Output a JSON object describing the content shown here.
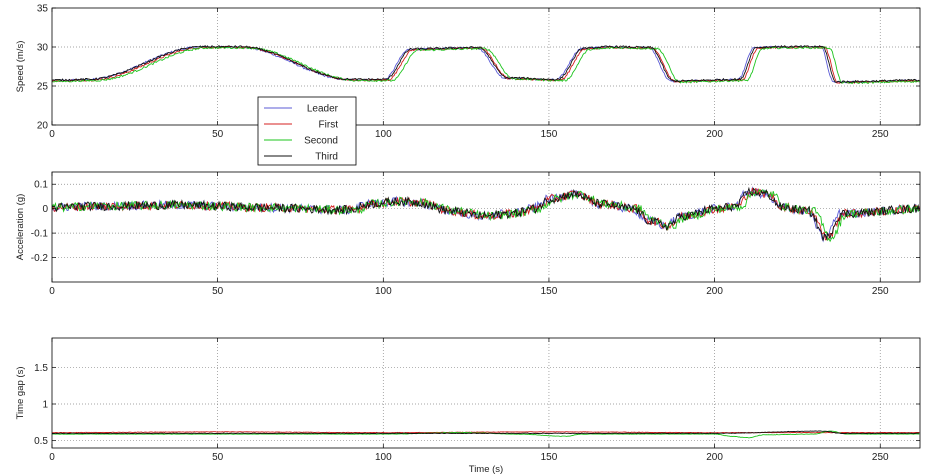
{
  "chart_data": [
    {
      "type": "line",
      "title": "",
      "xlabel": "",
      "ylabel": "Speed (m/s)",
      "xlim": [
        0,
        262
      ],
      "ylim": [
        20,
        35
      ],
      "xticks": [
        0,
        50,
        100,
        150,
        200,
        250
      ],
      "yticks": [
        20,
        25,
        30,
        35
      ],
      "grid": true,
      "noise": 0.12,
      "legend": {
        "position": "inside-lower-left",
        "entries": [
          "Leader",
          "First",
          "Second",
          "Third"
        ]
      },
      "series": [
        {
          "name": "Leader",
          "color": "#5b5bd6",
          "lag": 0,
          "offset": 0,
          "x": [
            0,
            10,
            45,
            56,
            90,
            100,
            108,
            128,
            137,
            152,
            160,
            168,
            180,
            187,
            207,
            212,
            218,
            232,
            236,
            262
          ],
          "y": [
            25.7,
            25.8,
            30,
            30,
            25.8,
            25.8,
            29.7,
            29.9,
            26,
            25.8,
            29.8,
            30,
            29.9,
            25.6,
            25.8,
            29.9,
            30,
            30,
            25.5,
            25.7
          ]
        },
        {
          "name": "First",
          "color": "#d42020",
          "lag": 1.2,
          "offset": -0.05,
          "x": [
            0,
            10,
            45,
            56,
            90,
            100,
            108,
            128,
            137,
            152,
            160,
            168,
            180,
            187,
            207,
            212,
            218,
            232,
            236,
            262
          ],
          "y": [
            25.7,
            25.8,
            30,
            30,
            25.8,
            25.8,
            29.7,
            29.9,
            26,
            25.8,
            29.8,
            30,
            29.9,
            25.6,
            25.8,
            29.9,
            30,
            30,
            25.5,
            25.7
          ]
        },
        {
          "name": "Second",
          "color": "#1ec41e",
          "lag": 2.6,
          "offset": -0.1,
          "x": [
            0,
            10,
            45,
            56,
            90,
            100,
            108,
            128,
            137,
            152,
            160,
            168,
            180,
            187,
            207,
            212,
            218,
            232,
            236,
            262
          ],
          "y": [
            25.7,
            25.8,
            30,
            30,
            25.8,
            25.8,
            29.7,
            29.9,
            26,
            25.8,
            29.8,
            30,
            29.9,
            25.6,
            25.8,
            29.9,
            30,
            30,
            25.5,
            25.7
          ]
        },
        {
          "name": "Third",
          "color": "#111111",
          "lag": 0.6,
          "offset": 0.05,
          "x": [
            0,
            10,
            45,
            56,
            90,
            100,
            108,
            128,
            137,
            152,
            160,
            168,
            180,
            187,
            207,
            212,
            218,
            232,
            236,
            262
          ],
          "y": [
            25.7,
            25.8,
            30,
            30,
            25.8,
            25.8,
            29.7,
            29.9,
            26,
            25.8,
            29.8,
            30,
            29.9,
            25.6,
            25.8,
            29.9,
            30,
            30,
            25.5,
            25.7
          ]
        }
      ]
    },
    {
      "type": "line",
      "title": "",
      "xlabel": "",
      "ylabel": "Acceleration (g)",
      "xlim": [
        0,
        262
      ],
      "ylim": [
        -0.3,
        0.15
      ],
      "xticks": [
        0,
        50,
        100,
        150,
        200,
        250
      ],
      "yticks": [
        -0.2,
        -0.1,
        0,
        0.1
      ],
      "grid": true,
      "noise": 0.018,
      "series": [
        {
          "name": "Leader",
          "color": "#5b5bd6",
          "lag": 0,
          "offset": 0,
          "x": [
            0,
            10,
            40,
            50,
            60,
            90,
            95,
            105,
            110,
            120,
            130,
            138,
            145,
            150,
            157,
            165,
            175,
            180,
            185,
            190,
            200,
            206,
            210,
            215,
            220,
            228,
            233,
            238,
            262
          ],
          "y": [
            0.005,
            0.01,
            0.015,
            0.01,
            0.005,
            -0.005,
            0.02,
            0.03,
            0.025,
            -0.01,
            -0.03,
            -0.02,
            0,
            0.04,
            0.06,
            0.02,
            0,
            -0.05,
            -0.07,
            -0.03,
            0,
            0.01,
            0.07,
            0.06,
            0.005,
            -0.01,
            -0.12,
            -0.02,
            0.0
          ]
        },
        {
          "name": "First",
          "color": "#d42020",
          "lag": 1.0,
          "offset": 0,
          "x": [
            0,
            10,
            40,
            50,
            60,
            90,
            95,
            105,
            110,
            120,
            130,
            138,
            145,
            150,
            157,
            165,
            175,
            180,
            185,
            190,
            200,
            206,
            210,
            215,
            220,
            228,
            233,
            238,
            262
          ],
          "y": [
            0.005,
            0.01,
            0.015,
            0.01,
            0.005,
            -0.005,
            0.02,
            0.03,
            0.025,
            -0.01,
            -0.03,
            -0.02,
            0,
            0.04,
            0.06,
            0.02,
            0,
            -0.05,
            -0.07,
            -0.03,
            0,
            0.01,
            0.07,
            0.06,
            0.005,
            -0.01,
            -0.12,
            -0.02,
            0.0
          ]
        },
        {
          "name": "Second",
          "color": "#1ec41e",
          "lag": 2.0,
          "offset": 0,
          "x": [
            0,
            10,
            40,
            50,
            60,
            90,
            95,
            105,
            110,
            120,
            130,
            138,
            145,
            150,
            157,
            165,
            175,
            180,
            185,
            190,
            200,
            206,
            210,
            215,
            220,
            228,
            233,
            238,
            262
          ],
          "y": [
            0.005,
            0.01,
            0.015,
            0.01,
            0.005,
            -0.005,
            0.02,
            0.03,
            0.025,
            -0.01,
            -0.03,
            -0.02,
            0,
            0.04,
            0.06,
            0.02,
            0,
            -0.05,
            -0.07,
            -0.03,
            0,
            0.01,
            0.07,
            0.06,
            0.005,
            -0.01,
            -0.12,
            -0.02,
            0.0
          ]
        },
        {
          "name": "Third",
          "color": "#111111",
          "lag": 0.5,
          "offset": 0,
          "x": [
            0,
            10,
            40,
            50,
            60,
            90,
            95,
            105,
            110,
            120,
            130,
            138,
            145,
            150,
            157,
            165,
            175,
            180,
            185,
            190,
            200,
            206,
            210,
            215,
            220,
            228,
            233,
            238,
            262
          ],
          "y": [
            0.005,
            0.01,
            0.015,
            0.01,
            0.005,
            -0.005,
            0.02,
            0.03,
            0.025,
            -0.01,
            -0.03,
            -0.02,
            0,
            0.04,
            0.06,
            0.02,
            0,
            -0.05,
            -0.07,
            -0.03,
            0,
            0.01,
            0.07,
            0.06,
            0.005,
            -0.01,
            -0.12,
            -0.02,
            0.0
          ]
        }
      ]
    },
    {
      "type": "line",
      "title": "",
      "xlabel": "Time (s)",
      "ylabel": "Time gap (s)",
      "xlim": [
        0,
        262
      ],
      "ylim": [
        0.4,
        1.9
      ],
      "xticks": [
        0,
        50,
        100,
        150,
        200,
        250
      ],
      "yticks": [
        0.5,
        1,
        1.5
      ],
      "grid": true,
      "noise": 0.003,
      "series": [
        {
          "name": "First",
          "color": "#d42020",
          "lag": 0,
          "offset": 0.01,
          "x": [
            0,
            50,
            100,
            150,
            200,
            262
          ],
          "y": [
            0.6,
            0.61,
            0.6,
            0.61,
            0.6,
            0.6
          ]
        },
        {
          "name": "Second",
          "color": "#1ec41e",
          "lag": 0,
          "offset": -0.01,
          "x": [
            0,
            50,
            100,
            125,
            140,
            155,
            160,
            200,
            205,
            210,
            215,
            230,
            235,
            240,
            262
          ],
          "y": [
            0.6,
            0.6,
            0.6,
            0.62,
            0.6,
            0.57,
            0.6,
            0.6,
            0.57,
            0.55,
            0.59,
            0.6,
            0.64,
            0.6,
            0.6
          ]
        },
        {
          "name": "Third",
          "color": "#111111",
          "lag": 0,
          "offset": 0,
          "x": [
            0,
            50,
            100,
            150,
            200,
            233,
            238,
            262
          ],
          "y": [
            0.6,
            0.6,
            0.6,
            0.6,
            0.6,
            0.63,
            0.6,
            0.6
          ]
        }
      ]
    }
  ]
}
